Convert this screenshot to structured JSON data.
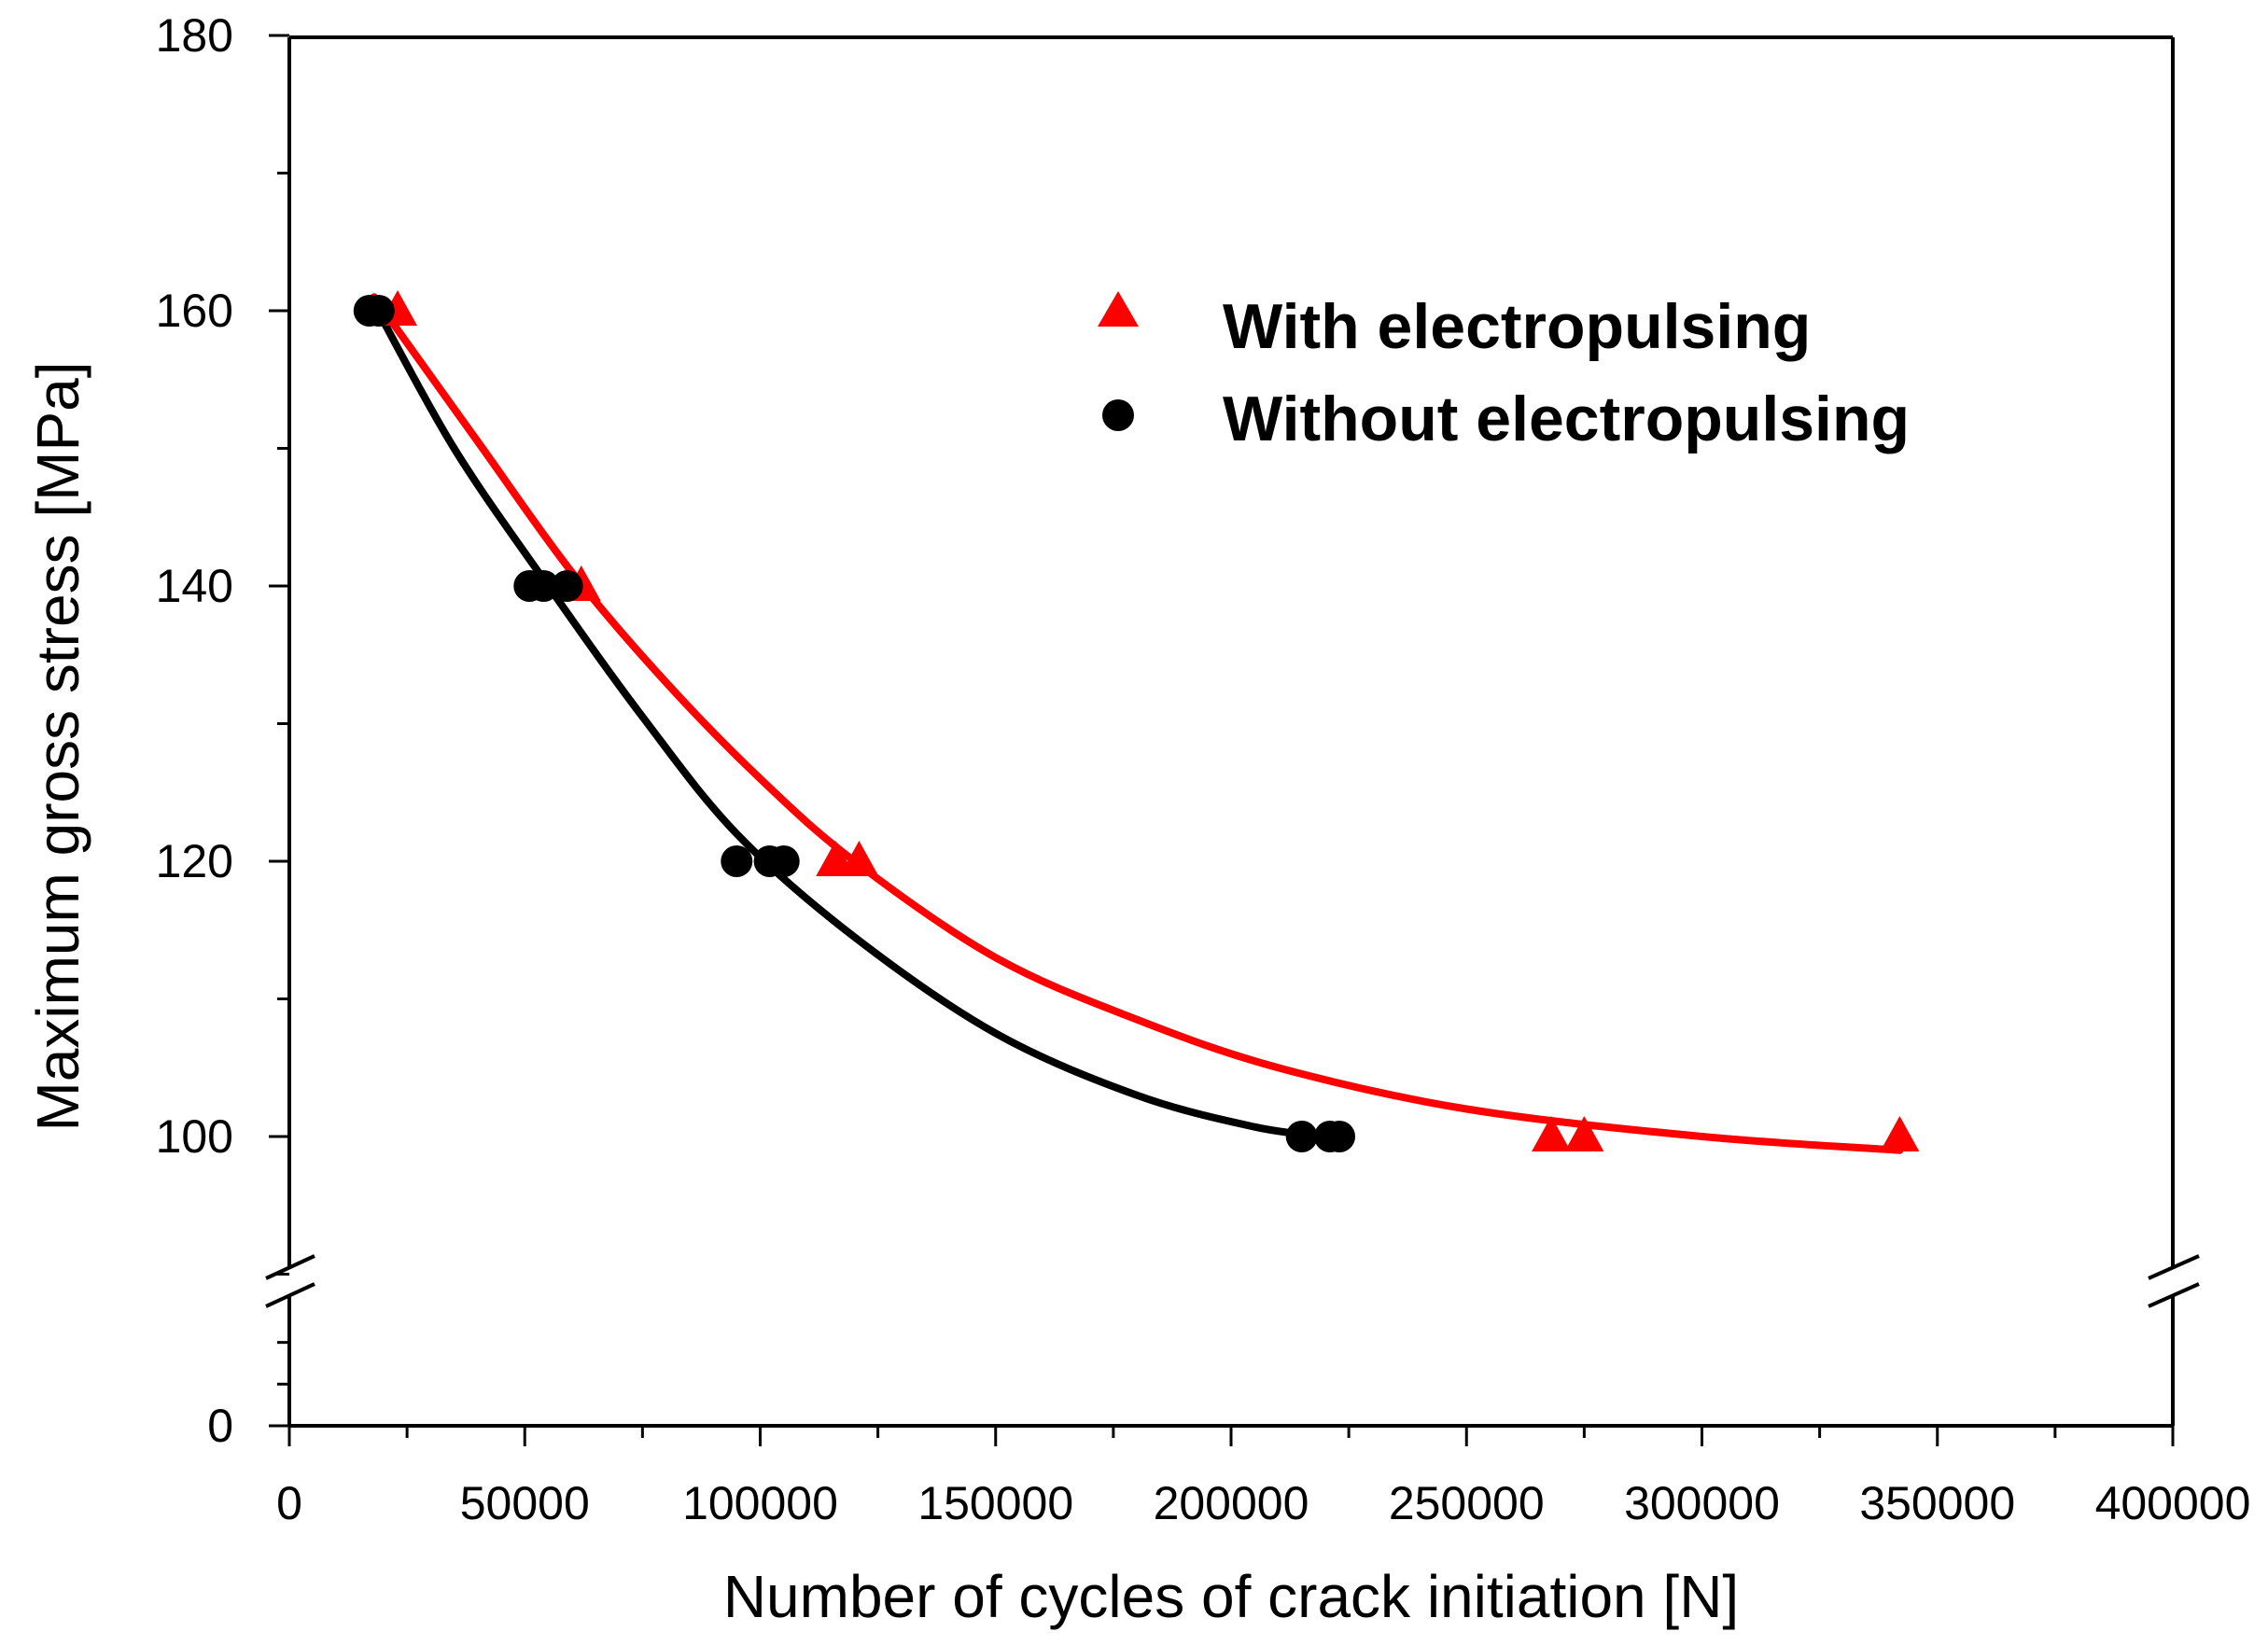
{
  "chart_data": {
    "type": "scatter",
    "xlabel": "Number of cycles of crack initiation [N]",
    "ylabel": "Maximum gross stress [MPa]",
    "xlim": [
      0,
      400000
    ],
    "ylim": [
      0,
      180
    ],
    "y_axis_break": [
      85,
      95
    ],
    "x_ticks": [
      0,
      50000,
      100000,
      150000,
      200000,
      250000,
      300000,
      350000,
      400000
    ],
    "x_tick_labels": [
      "0",
      "50000",
      "100000",
      "150000",
      "200000",
      "250000",
      "300000",
      "350000",
      "400000"
    ],
    "y_ticks": [
      0,
      100,
      120,
      140,
      160,
      180
    ],
    "y_tick_labels": [
      "0",
      "100",
      "120",
      "140",
      "160",
      "180"
    ],
    "grid": false,
    "legend_position": "top-right",
    "series": [
      {
        "name": "With electropulsing",
        "marker": "triangle",
        "color": "#ff0000",
        "points": [
          {
            "x": 23000,
            "y": 160
          },
          {
            "x": 62000,
            "y": 140
          },
          {
            "x": 116000,
            "y": 120
          },
          {
            "x": 121000,
            "y": 120
          },
          {
            "x": 268000,
            "y": 100
          },
          {
            "x": 275000,
            "y": 100
          },
          {
            "x": 342000,
            "y": 100
          }
        ],
        "fit_curve": [
          {
            "x": 18000,
            "y": 161
          },
          {
            "x": 40000,
            "y": 150.5
          },
          {
            "x": 60000,
            "y": 141
          },
          {
            "x": 80000,
            "y": 133
          },
          {
            "x": 100000,
            "y": 126
          },
          {
            "x": 120000,
            "y": 120
          },
          {
            "x": 150000,
            "y": 113
          },
          {
            "x": 180000,
            "y": 108.5
          },
          {
            "x": 210000,
            "y": 105
          },
          {
            "x": 250000,
            "y": 102
          },
          {
            "x": 300000,
            "y": 100
          },
          {
            "x": 342000,
            "y": 99
          }
        ]
      },
      {
        "name": "Without electropulsing",
        "marker": "circle",
        "color": "#000000",
        "points": [
          {
            "x": 17000,
            "y": 160
          },
          {
            "x": 19000,
            "y": 160
          },
          {
            "x": 51000,
            "y": 140
          },
          {
            "x": 54000,
            "y": 140
          },
          {
            "x": 59000,
            "y": 140
          },
          {
            "x": 95000,
            "y": 120
          },
          {
            "x": 102000,
            "y": 120
          },
          {
            "x": 105000,
            "y": 120
          },
          {
            "x": 215000,
            "y": 100
          },
          {
            "x": 221000,
            "y": 100
          },
          {
            "x": 223000,
            "y": 100
          }
        ],
        "fit_curve": [
          {
            "x": 18000,
            "y": 160.5
          },
          {
            "x": 35000,
            "y": 150
          },
          {
            "x": 55000,
            "y": 140
          },
          {
            "x": 75000,
            "y": 130.5
          },
          {
            "x": 95000,
            "y": 122
          },
          {
            "x": 120000,
            "y": 114.5
          },
          {
            "x": 150000,
            "y": 107.5
          },
          {
            "x": 180000,
            "y": 103
          },
          {
            "x": 205000,
            "y": 100.7
          },
          {
            "x": 220000,
            "y": 100
          }
        ]
      }
    ]
  }
}
